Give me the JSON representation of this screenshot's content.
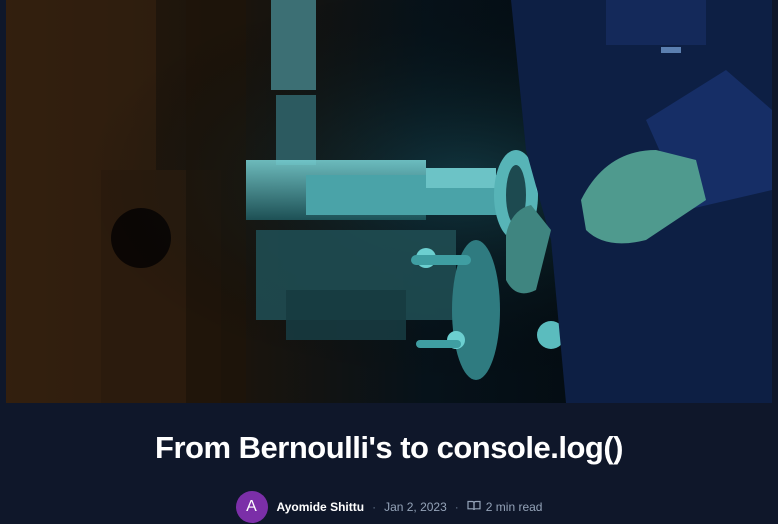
{
  "post": {
    "title": "From Bernoulli's to console.log()",
    "author": {
      "initial": "A",
      "name": "Ayomide Shittu"
    },
    "date": "Jan 2, 2023",
    "separator": "·",
    "read_time": "2 min read"
  },
  "icons": {
    "read_time": "book-open-icon"
  },
  "colors": {
    "background": "#0f172a",
    "avatar": "#7b2fa8",
    "meta_text": "#94a3b8"
  }
}
